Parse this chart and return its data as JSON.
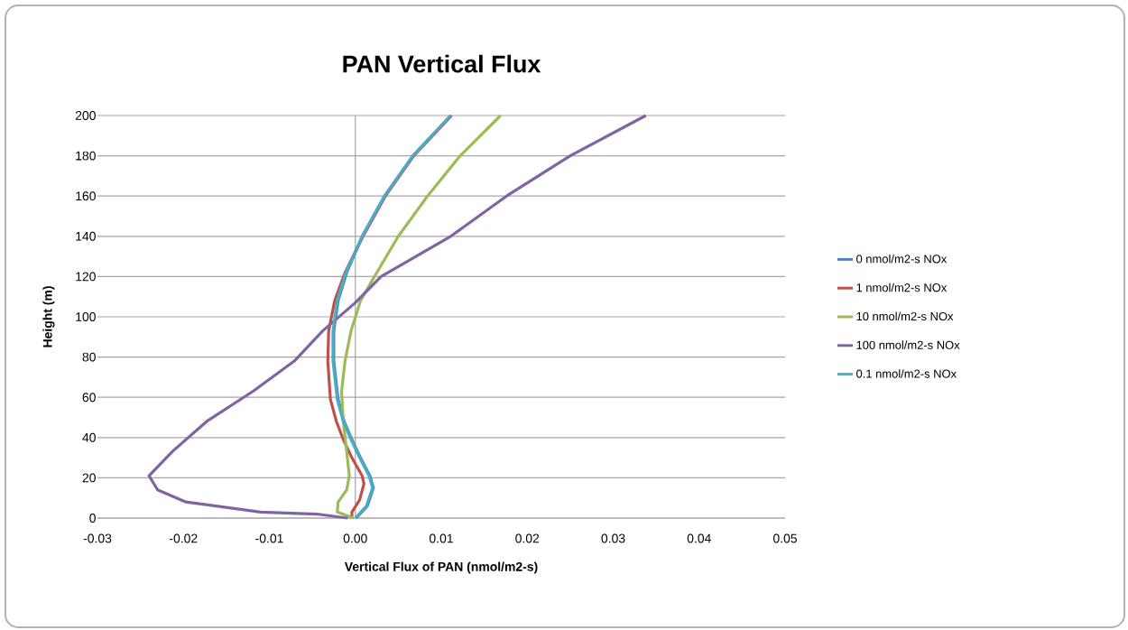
{
  "chart_data": {
    "type": "line",
    "title": "PAN Vertical Flux",
    "xlabel": "Vertical Flux of PAN (nmol/m2-s)",
    "ylabel": "Height (m)",
    "xlim": [
      -0.03,
      0.05
    ],
    "xticks": [
      -0.03,
      -0.02,
      -0.01,
      {
        "value": 0,
        "label": "0.00"
      },
      0.01,
      0.02,
      0.03,
      0.04,
      0.05
    ],
    "ylim": [
      0,
      200
    ],
    "yticks": [
      0,
      20,
      40,
      60,
      80,
      100,
      120,
      140,
      160,
      180,
      200
    ],
    "grid": "y",
    "legend": "right",
    "ref_lines": [
      {
        "axis": "x",
        "value": 0
      }
    ],
    "series": [
      {
        "name": "0 nmol/m2-s NOx",
        "color": "#4f81bd",
        "x": [
          0.0001,
          0.0014,
          0.0021,
          0.0017,
          0.0006,
          -0.0004,
          -0.0013,
          -0.002,
          -0.0025,
          -0.0025,
          -0.002,
          -0.001,
          0.0008,
          0.0034,
          0.0067,
          0.0111
        ],
        "values": [
          0,
          6,
          15,
          21,
          30,
          39,
          48,
          59,
          78,
          93,
          108,
          122,
          140,
          160,
          180,
          200
        ]
      },
      {
        "name": "1 nmol/m2-s NOx",
        "color": "#c0504d",
        "x": [
          -0.0004,
          -0.0004,
          0.0005,
          0.001,
          0.0008,
          -0.0004,
          -0.0014,
          -0.0022,
          -0.0029,
          -0.0032,
          -0.0031,
          -0.0024,
          -0.0012,
          0.0009,
          0.0035,
          0.0068,
          0.0112
        ],
        "values": [
          0,
          3,
          9,
          17,
          21,
          30,
          39,
          48,
          59,
          78,
          93,
          108,
          122,
          140,
          160,
          180,
          200
        ]
      },
      {
        "name": "10 nmol/m2-s NOx",
        "color": "#9bbb59",
        "x": [
          -0.0002,
          -0.0021,
          -0.002,
          -0.001,
          -0.0007,
          -0.001,
          -0.0014,
          -0.0016,
          -0.0012,
          -0.0005,
          0.0006,
          0.0025,
          0.005,
          0.0084,
          0.0122,
          0.0169
        ],
        "values": [
          0,
          3,
          8,
          14,
          21,
          33,
          48,
          63,
          78,
          93,
          108,
          122,
          140,
          160,
          180,
          200
        ]
      },
      {
        "name": "100 nmol/m2-s NOx",
        "color": "#8064a2",
        "x": [
          -0.0009,
          -0.0045,
          -0.011,
          -0.0197,
          -0.023,
          -0.024,
          -0.0213,
          -0.0173,
          -0.0119,
          -0.0071,
          -0.0038,
          0,
          0.003,
          0.0111,
          0.0176,
          0.025,
          0.0338
        ],
        "values": [
          0,
          2,
          3,
          8,
          14,
          21,
          33,
          48,
          63,
          78,
          93,
          107,
          120,
          140,
          160,
          180,
          200
        ]
      },
      {
        "name": "0.1 nmol/m2-s NOx",
        "color": "#4bacc6",
        "x": [
          0,
          0.0013,
          0.002,
          0.0016,
          0.0005,
          -0.0005,
          -0.0014,
          -0.0021,
          -0.0026,
          -0.0026,
          -0.0021,
          -0.0011,
          0.0008,
          0.0034,
          0.0067,
          0.0111
        ],
        "values": [
          0,
          6,
          15,
          21,
          30,
          39,
          48,
          59,
          78,
          93,
          108,
          122,
          140,
          160,
          180,
          200
        ]
      }
    ]
  }
}
